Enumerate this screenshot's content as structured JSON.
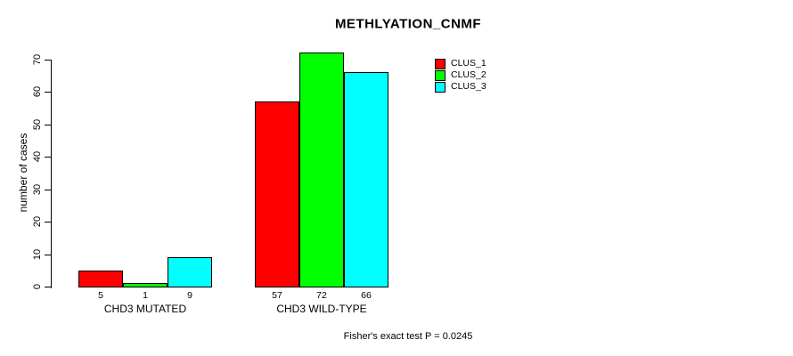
{
  "title": "METHLYATION_CNMF",
  "footer": {
    "note": "Fisher's exact test P = 0.0245"
  },
  "chart_data": {
    "type": "bar",
    "title": "METHLYATION_CNMF",
    "ylabel": "number of cases",
    "xlabel": "",
    "ylim": [
      0,
      70
    ],
    "yticks": [
      0,
      10,
      20,
      30,
      40,
      50,
      60,
      70
    ],
    "grid": false,
    "legend_position": "top-right",
    "categories": [
      "CHD3 MUTATED",
      "CHD3 WILD-TYPE"
    ],
    "series": [
      {
        "name": "CLUS_1",
        "color": "#ff0000",
        "values": [
          5,
          57
        ]
      },
      {
        "name": "CLUS_2",
        "color": "#00ff00",
        "values": [
          1,
          72
        ]
      },
      {
        "name": "CLUS_3",
        "color": "#00ffff",
        "values": [
          9,
          66
        ]
      }
    ],
    "bar_value_labels": [
      [
        5,
        1,
        9
      ],
      [
        57,
        72,
        66
      ]
    ],
    "bar_border_color": "#000000",
    "annotation": "Fisher's exact test P = 0.0245"
  }
}
